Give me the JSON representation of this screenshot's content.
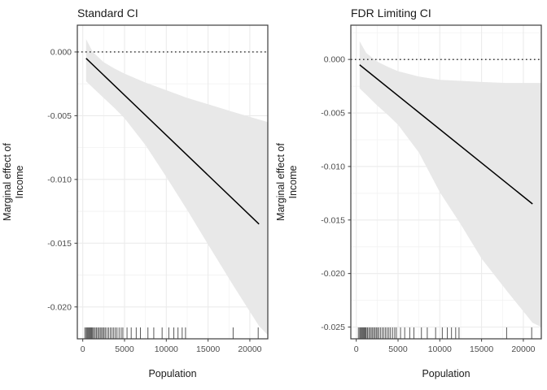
{
  "figure": {
    "background": "#ffffff",
    "description_colors": {
      "line": "#000000",
      "ribbon": "#e8e8e8",
      "grid_major": "#ebebeb",
      "grid_minor": "#f2f2f2",
      "panel_border": "#3c3c3c",
      "axis_text": "#4d4d4d",
      "title_text": "#1a1a1a"
    }
  },
  "chart_data": [
    {
      "type": "line",
      "title": "Standard CI",
      "xlabel": "Population",
      "ylabel_lines": [
        "Marginal effect of",
        "Income"
      ],
      "legend": "none",
      "grid": true,
      "xlim": [
        -650,
        22150
      ],
      "ylim": [
        -0.0225,
        0.0021
      ],
      "x_tick_values": [
        0,
        5000,
        10000,
        15000,
        20000
      ],
      "x_tick_labels": [
        "0",
        "5000",
        "10000",
        "15000",
        "20000"
      ],
      "y_tick_values": [
        0,
        -0.005,
        -0.01,
        -0.015,
        -0.02
      ],
      "y_tick_labels": [
        "0.000",
        "-0.005",
        "-0.010",
        "-0.015",
        "-0.020"
      ],
      "zero_line_y": 0,
      "line": {
        "x": [
          400,
          21100
        ],
        "y": [
          -0.0005,
          -0.0135
        ]
      },
      "ribbon": {
        "x": [
          400,
          1200,
          2500,
          3800,
          5000,
          7500,
          10000,
          12500,
          15000,
          18000,
          21100,
          22150
        ],
        "upper": [
          0.001,
          0.0,
          -0.0008,
          -0.0013,
          -0.0017,
          -0.0024,
          -0.003,
          -0.0036,
          -0.0041,
          -0.0047,
          -0.0053,
          -0.0055
        ],
        "lower": [
          -0.0023,
          -0.0028,
          -0.0036,
          -0.0044,
          -0.0052,
          -0.0073,
          -0.0098,
          -0.0124,
          -0.0151,
          -0.0183,
          -0.0215,
          -0.0222
        ]
      },
      "rug_x": [
        250,
        400,
        500,
        600,
        700,
        800,
        900,
        1000,
        1100,
        1200,
        1350,
        1500,
        1650,
        1800,
        1950,
        2100,
        2250,
        2400,
        2550,
        2700,
        2900,
        3100,
        3300,
        3500,
        3700,
        3900,
        4100,
        4350,
        4600,
        4800,
        5300,
        5800,
        6400,
        6900,
        7800,
        8500,
        9500,
        10300,
        10900,
        11400,
        11900,
        12300,
        18000,
        21000
      ]
    },
    {
      "type": "line",
      "title": "FDR Limiting CI",
      "xlabel": "Population",
      "ylabel_lines": [
        "Marginal effect of",
        "Income"
      ],
      "legend": "none",
      "grid": true,
      "xlim": [
        -650,
        22150
      ],
      "ylim": [
        -0.0261,
        0.0032
      ],
      "x_tick_values": [
        0,
        5000,
        10000,
        15000,
        20000
      ],
      "x_tick_labels": [
        "0",
        "5000",
        "10000",
        "15000",
        "20000"
      ],
      "y_tick_values": [
        0,
        -0.005,
        -0.01,
        -0.015,
        -0.02,
        -0.025
      ],
      "y_tick_labels": [
        "0.000",
        "-0.005",
        "-0.010",
        "-0.015",
        "-0.020",
        "-0.025"
      ],
      "zero_line_y": 0,
      "line": {
        "x": [
          400,
          21100
        ],
        "y": [
          -0.0005,
          -0.0135
        ]
      },
      "ribbon": {
        "x": [
          400,
          1200,
          2500,
          3800,
          5000,
          7500,
          10000,
          12500,
          15000,
          18000,
          21100,
          22150
        ],
        "upper": [
          0.0017,
          0.0006,
          -0.0002,
          -0.0007,
          -0.0011,
          -0.0016,
          -0.0019,
          -0.002,
          -0.0021,
          -0.0022,
          -0.0022,
          -0.0022
        ],
        "lower": [
          -0.0027,
          -0.0033,
          -0.0043,
          -0.0052,
          -0.0061,
          -0.0087,
          -0.0124,
          -0.0154,
          -0.0186,
          -0.0216,
          -0.0246,
          -0.025
        ]
      },
      "rug_x": [
        250,
        400,
        500,
        600,
        700,
        800,
        900,
        1000,
        1100,
        1200,
        1350,
        1500,
        1650,
        1800,
        1950,
        2100,
        2250,
        2400,
        2550,
        2700,
        2900,
        3100,
        3300,
        3500,
        3700,
        3900,
        4100,
        4350,
        4600,
        4800,
        5300,
        5800,
        6400,
        6900,
        7800,
        8500,
        9500,
        10300,
        10900,
        11400,
        11900,
        12300,
        18000,
        21000
      ]
    }
  ]
}
